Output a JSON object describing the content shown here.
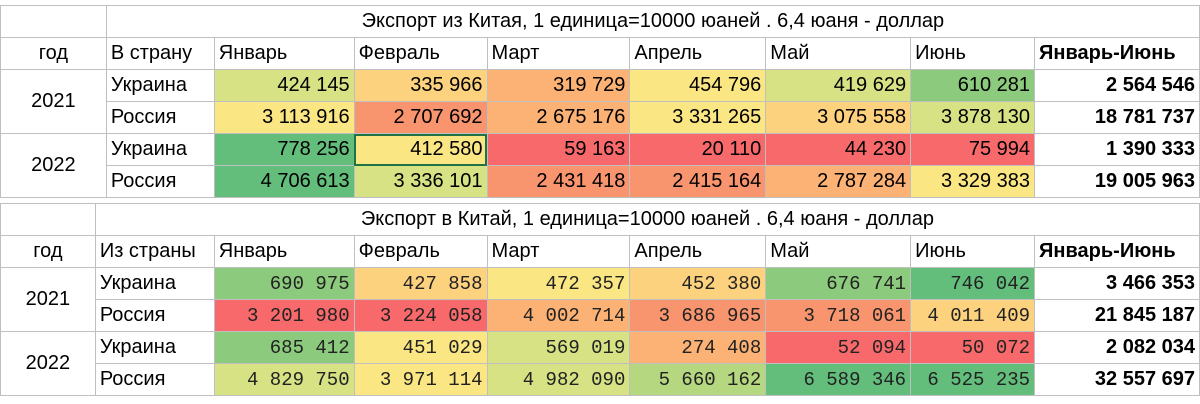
{
  "colors": {
    "dark_green": "#63be7b",
    "green": "#8ccb7d",
    "light_green": "#b5d77f",
    "yellow_green": "#d6e283",
    "yellow": "#fae683",
    "yellow_orange": "#fdd27f",
    "orange": "#fbb274",
    "salmon": "#f8946e",
    "red": "#f8696b"
  },
  "tables": [
    {
      "title": "Экспорт из Китая, 1 единица=10000 юаней . 6,4 юаня - доллар",
      "headers": [
        "год",
        "В страну",
        "Январь",
        "Февраль",
        "Март",
        "Апрель",
        "Май",
        "Июнь",
        "Январь-Июнь"
      ],
      "groups": [
        {
          "year": "2021",
          "rows": [
            {
              "country": "Украина",
              "values": [
                "424 145",
                "335 966",
                "319 729",
                "454 796",
                "419 629",
                "610 281"
              ],
              "colors": [
                "yellow_green",
                "yellow_orange",
                "orange",
                "yellow",
                "yellow_green",
                "green"
              ],
              "total": "2 564 546"
            },
            {
              "country": "Россия",
              "values": [
                "3 113 916",
                "2 707 692",
                "2 675 176",
                "3 331 265",
                "3 075 558",
                "3 878 130"
              ],
              "colors": [
                "yellow",
                "salmon",
                "orange",
                "yellow",
                "yellow_orange",
                "yellow_green"
              ],
              "total": "18 781 737"
            }
          ]
        },
        {
          "year": "2022",
          "rows": [
            {
              "country": "Украина",
              "values": [
                "778 256",
                "412 580",
                "59 163",
                "20 110",
                "44 230",
                "75 994"
              ],
              "colors": [
                "dark_green",
                "yellow",
                "red",
                "red",
                "red",
                "red"
              ],
              "total": "1 390 333"
            },
            {
              "country": "Россия",
              "values": [
                "4 706 613",
                "3 336 101",
                "2 431 418",
                "2 415 164",
                "2 787 284",
                "3 329 383"
              ],
              "colors": [
                "dark_green",
                "yellow_green",
                "salmon",
                "salmon",
                "orange",
                "yellow"
              ],
              "total": "19 005 963"
            }
          ]
        }
      ]
    },
    {
      "title": "Экспорт в Китай, 1 единица=10000 юаней . 6,4 юаня - доллар",
      "headers": [
        "год",
        "Из страны",
        "Январь",
        "Февраль",
        "Март",
        "Апрель",
        "Май",
        "Июнь",
        "Январь-Июнь"
      ],
      "groups": [
        {
          "year": "2021",
          "rows": [
            {
              "country": "Украина",
              "values": [
                "690 975",
                "427 858",
                "472 357",
                "452 380",
                "676 741",
                "746 042"
              ],
              "colors": [
                "green",
                "yellow_orange",
                "yellow",
                "yellow_orange",
                "green",
                "dark_green"
              ],
              "total": "3 466 353"
            },
            {
              "country": "Россия",
              "values": [
                "3 201 980",
                "3 224 058",
                "4 002 714",
                "3 686 965",
                "3 718 061",
                "4 011 409"
              ],
              "colors": [
                "red",
                "red",
                "orange",
                "salmon",
                "salmon",
                "yellow_orange"
              ],
              "total": "21 845 187"
            }
          ]
        },
        {
          "year": "2022",
          "rows": [
            {
              "country": "Украина",
              "values": [
                "685 412",
                "451 029",
                "569 019",
                "274 408",
                "52 094",
                "50 072"
              ],
              "colors": [
                "green",
                "yellow",
                "yellow_green",
                "orange",
                "red",
                "red"
              ],
              "total": "2 082 034"
            },
            {
              "country": "Россия",
              "values": [
                "4 829 750",
                "3 971 114",
                "4 982 090",
                "5 660 162",
                "6 589 346",
                "6 525 235"
              ],
              "colors": [
                "yellow_green",
                "yellow",
                "yellow_green",
                "light_green",
                "dark_green",
                "dark_green"
              ],
              "total": "32 557 697"
            }
          ]
        }
      ]
    }
  ]
}
